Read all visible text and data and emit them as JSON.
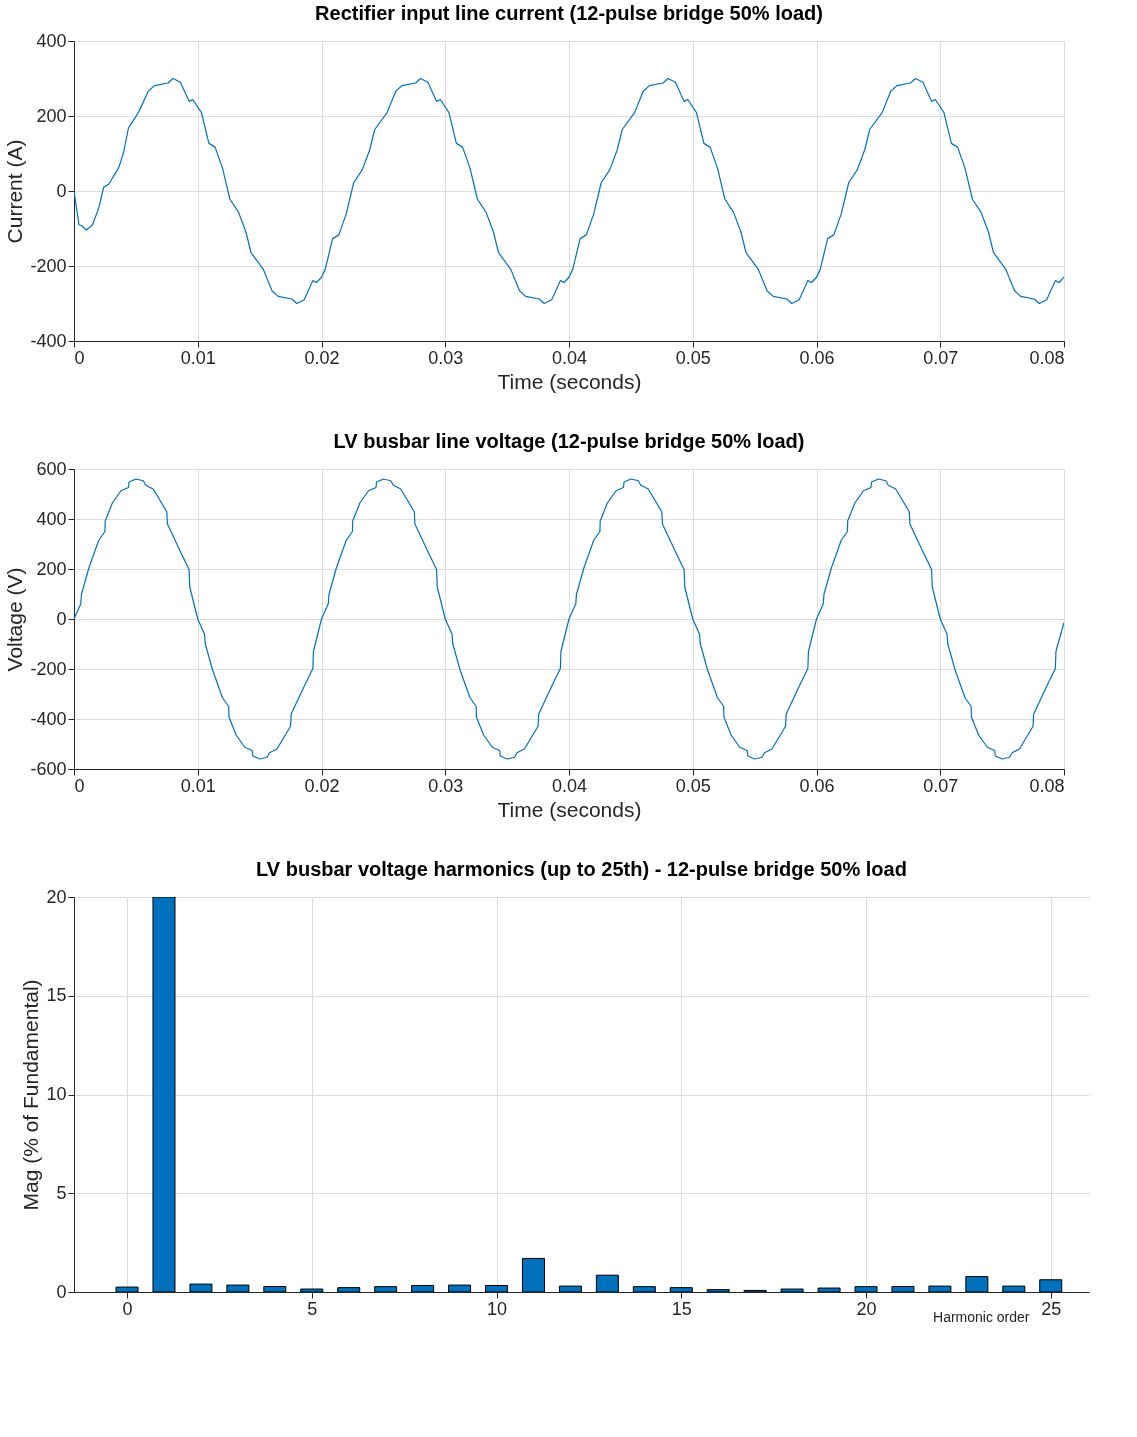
{
  "chart_data": [
    {
      "type": "line",
      "title": "Rectifier input line current (12-pulse bridge 50% load)",
      "xlabel": "Time (seconds)",
      "ylabel": "Current (A)",
      "color": "#0072bd",
      "x": [
        0,
        0.0004,
        0.0006,
        0.001,
        0.0015,
        0.002,
        0.0024,
        0.0028,
        0.0036,
        0.004,
        0.0044,
        0.0052,
        0.006,
        0.0065,
        0.0076,
        0.008,
        0.0086,
        0.0093,
        0.0096,
        0.0103,
        0.0109,
        0.0114,
        0.012,
        0.0126,
        0.0133,
        0.0139,
        0.0143,
        0.0153,
        0.016,
        0.0165,
        0.0176,
        0.018,
        0.0186,
        0.0193,
        0.0196,
        0.02,
        0.0203,
        0.0209,
        0.0214,
        0.022,
        0.0226,
        0.0233,
        0.0239,
        0.0243,
        0.0253,
        0.026,
        0.0265,
        0.0276,
        0.028,
        0.0286,
        0.0293,
        0.0296,
        0.0303,
        0.0309,
        0.0314,
        0.032,
        0.0326,
        0.0333,
        0.0339,
        0.0343,
        0.0353,
        0.036,
        0.0365,
        0.0376,
        0.038,
        0.0386,
        0.0393,
        0.0396,
        0.04,
        0.0403,
        0.0409,
        0.0414,
        0.042,
        0.0426,
        0.0433,
        0.0439,
        0.0443,
        0.0453,
        0.046,
        0.0465,
        0.0476,
        0.048,
        0.0486,
        0.0493,
        0.0496,
        0.0503,
        0.0509,
        0.0514,
        0.052,
        0.0526,
        0.0533,
        0.0539,
        0.0543,
        0.0553,
        0.056,
        0.0565,
        0.0576,
        0.058,
        0.0586,
        0.0593,
        0.0596,
        0.06,
        0.0603,
        0.0609,
        0.0614,
        0.062,
        0.0626,
        0.0633,
        0.0639,
        0.0643,
        0.0653,
        0.066,
        0.0665,
        0.0676,
        0.068,
        0.0686,
        0.0693,
        0.0696,
        0.0703,
        0.0709,
        0.0714,
        0.072,
        0.0726,
        0.0733,
        0.0739,
        0.0743,
        0.0753,
        0.076,
        0.0765,
        0.0776,
        0.078,
        0.0786,
        0.0793,
        0.0796,
        0.08
      ],
      "values": [
        0,
        -90,
        -92,
        -104,
        -90,
        -45,
        10,
        18,
        61,
        102,
        168,
        209,
        266,
        281,
        288,
        300,
        290,
        239,
        244,
        209,
        127,
        117,
        61,
        -22,
        -57,
        -110,
        -164,
        -209,
        -266,
        -281,
        -288,
        -300,
        -290,
        -239,
        -244,
        -230,
        -209,
        -127,
        -117,
        -61,
        22,
        57,
        110,
        164,
        209,
        266,
        281,
        288,
        300,
        290,
        239,
        244,
        209,
        127,
        117,
        61,
        -22,
        -57,
        -110,
        -164,
        -209,
        -266,
        -281,
        -288,
        -300,
        -290,
        -239,
        -244,
        -230,
        -209,
        -127,
        -117,
        -61,
        22,
        57,
        110,
        164,
        209,
        266,
        281,
        288,
        300,
        290,
        239,
        244,
        209,
        127,
        117,
        61,
        -22,
        -57,
        -110,
        -164,
        -209,
        -266,
        -281,
        -288,
        -300,
        -290,
        -239,
        -244,
        -230,
        -209,
        -127,
        -117,
        -61,
        22,
        57,
        110,
        164,
        209,
        266,
        281,
        288,
        300,
        290,
        239,
        244,
        209,
        127,
        117,
        61,
        -22,
        -57,
        -110,
        -164,
        -209,
        -266,
        -281,
        -288,
        -300,
        -290,
        -239,
        -244,
        -230
      ],
      "xlim": [
        0,
        0.08
      ],
      "xticks": [
        0,
        0.01,
        0.02,
        0.03,
        0.04,
        0.05,
        0.06,
        0.07,
        0.08
      ],
      "ylim": [
        -400,
        400
      ],
      "yticks": [
        -400,
        -200,
        0,
        200,
        400
      ],
      "grid": true
    },
    {
      "type": "line",
      "title": "LV busbar line voltage (12-pulse bridge 50% load)",
      "xlabel": "Time (seconds)",
      "ylabel": "Voltage (V)",
      "color": "#0072bd",
      "x": [
        0,
        0.00055,
        0.0006,
        0.0012,
        0.002,
        0.0025,
        0.00252,
        0.0031,
        0.0038,
        0.0044,
        0.00445,
        0.005,
        0.0056,
        0.0058,
        0.0064,
        0.0075,
        0.00755,
        0.0087,
        0.0093,
        0.00935,
        0.01,
        0.01055,
        0.0106,
        0.0112,
        0.012,
        0.0125,
        0.01252,
        0.0131,
        0.0138,
        0.0144,
        0.01445,
        0.015,
        0.0156,
        0.0158,
        0.0164,
        0.0175,
        0.01755,
        0.0187,
        0.0193,
        0.01935,
        0.02,
        0.02055,
        0.0206,
        0.0212,
        0.022,
        0.0225,
        0.02252,
        0.0231,
        0.0238,
        0.0244,
        0.02445,
        0.025,
        0.0256,
        0.0258,
        0.0264,
        0.0275,
        0.02755,
        0.0287,
        0.0293,
        0.02935,
        0.03,
        0.03055,
        0.0306,
        0.0312,
        0.032,
        0.0325,
        0.03252,
        0.0331,
        0.0338,
        0.0344,
        0.03445,
        0.035,
        0.0356,
        0.0358,
        0.0364,
        0.0375,
        0.03755,
        0.0387,
        0.0393,
        0.03935,
        0.04,
        0.04055,
        0.0406,
        0.0412,
        0.042,
        0.0425,
        0.04252,
        0.0431,
        0.0438,
        0.0444,
        0.04445,
        0.045,
        0.0456,
        0.0458,
        0.0464,
        0.0475,
        0.04755,
        0.0487,
        0.0493,
        0.04935,
        0.05,
        0.05055,
        0.0506,
        0.0512,
        0.052,
        0.0525,
        0.05252,
        0.0531,
        0.0538,
        0.0544,
        0.05445,
        0.055,
        0.0556,
        0.0558,
        0.0564,
        0.0575,
        0.05755,
        0.0587,
        0.0593,
        0.05935,
        0.06,
        0.06055,
        0.0606,
        0.0612,
        0.062,
        0.0625,
        0.06252,
        0.0631,
        0.0638,
        0.0644,
        0.06445,
        0.065,
        0.0656,
        0.0658,
        0.0664,
        0.0675,
        0.06755,
        0.0687,
        0.0693,
        0.06935,
        0.07,
        0.07055,
        0.0706,
        0.0712,
        0.072,
        0.0725,
        0.07252,
        0.0731,
        0.0738,
        0.0744,
        0.07445,
        0.075,
        0.0756,
        0.0758,
        0.0764,
        0.0775,
        0.07755,
        0.0787,
        0.0793,
        0.07935,
        0.08
      ],
      "values": [
        0,
        61,
        98,
        204,
        315,
        350,
        392,
        464,
        513,
        526,
        548,
        560,
        553,
        535,
        520,
        429,
        380,
        259,
        198,
        129,
        0,
        -61,
        -98,
        -204,
        -315,
        -350,
        -392,
        -464,
        -513,
        -526,
        -548,
        -560,
        -553,
        -535,
        -520,
        -429,
        -380,
        -259,
        -198,
        -129,
        0,
        61,
        98,
        204,
        315,
        350,
        392,
        464,
        513,
        526,
        548,
        560,
        553,
        535,
        520,
        429,
        380,
        259,
        198,
        129,
        0,
        -61,
        -98,
        -204,
        -315,
        -350,
        -392,
        -464,
        -513,
        -526,
        -548,
        -560,
        -553,
        -535,
        -520,
        -429,
        -380,
        -259,
        -198,
        -129,
        0,
        61,
        98,
        204,
        315,
        350,
        392,
        464,
        513,
        526,
        548,
        560,
        553,
        535,
        520,
        429,
        380,
        259,
        198,
        129,
        0,
        -61,
        -98,
        -204,
        -315,
        -350,
        -392,
        -464,
        -513,
        -526,
        -548,
        -560,
        -553,
        -535,
        -520,
        -429,
        -380,
        -259,
        -198,
        -129,
        0,
        61,
        98,
        204,
        315,
        350,
        392,
        464,
        513,
        526,
        548,
        560,
        553,
        535,
        520,
        429,
        380,
        259,
        198,
        129,
        0,
        -61,
        -98,
        -204,
        -315,
        -350,
        -392,
        -464,
        -513,
        -526,
        -548,
        -560,
        -553,
        -535,
        -520,
        -429,
        -380,
        -259,
        -198,
        -129,
        -15
      ],
      "xlim": [
        0,
        0.08
      ],
      "xticks": [
        0,
        0.01,
        0.02,
        0.03,
        0.04,
        0.05,
        0.06,
        0.07,
        0.08
      ],
      "ylim": [
        -600,
        600
      ],
      "yticks": [
        -600,
        -400,
        -200,
        0,
        200,
        400,
        600
      ],
      "grid": true
    },
    {
      "type": "bar",
      "title": "LV busbar voltage harmonics (up to 25th) - 12-pulse bridge 50% load",
      "xlabel": "Harmonic order",
      "ylabel": "Mag (% of Fundamental)",
      "color": "#0072bd",
      "x": [
        0,
        1,
        2,
        3,
        4,
        5,
        6,
        7,
        8,
        9,
        10,
        11,
        12,
        13,
        14,
        15,
        16,
        17,
        18,
        19,
        20,
        21,
        22,
        23,
        24,
        25
      ],
      "values": [
        0.25,
        20,
        0.4,
        0.35,
        0.28,
        0.15,
        0.22,
        0.27,
        0.33,
        0.35,
        0.33,
        1.7,
        0.3,
        0.85,
        0.27,
        0.22,
        0.12,
        0.08,
        0.15,
        0.2,
        0.27,
        0.28,
        0.3,
        0.78,
        0.3,
        0.62
      ],
      "xlim": [
        -1.3,
        25.9
      ],
      "xticks": [
        0,
        5,
        10,
        15,
        20,
        25
      ],
      "ylim": [
        0,
        20
      ],
      "yticks": [
        0,
        5,
        10,
        15,
        20
      ],
      "grid": true
    }
  ]
}
